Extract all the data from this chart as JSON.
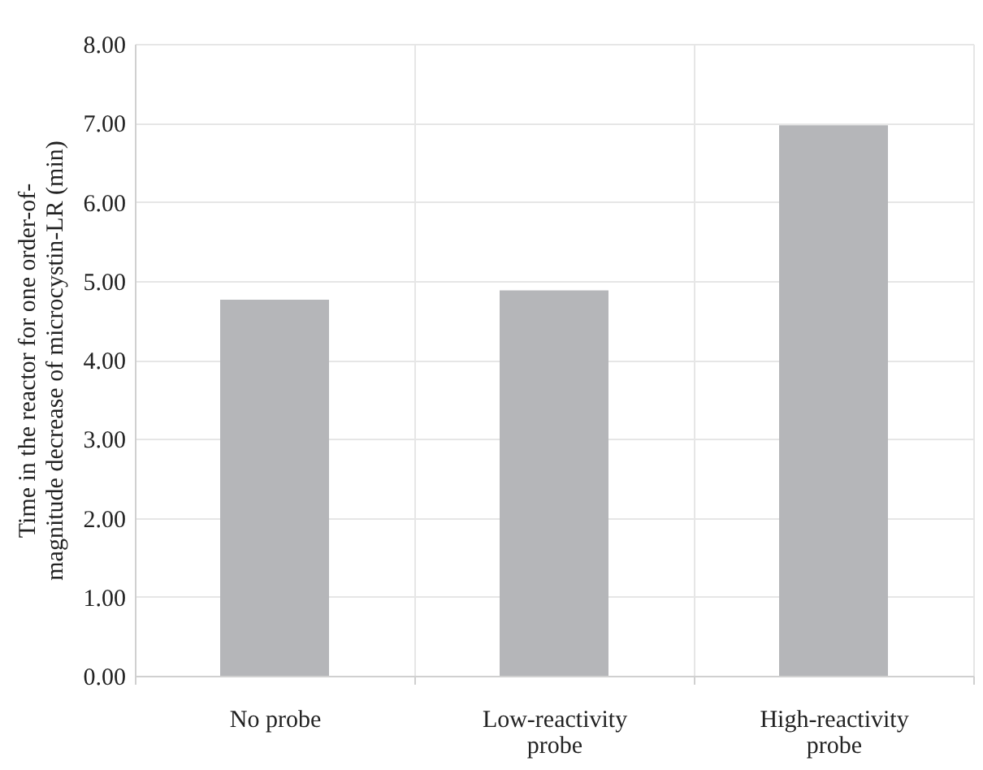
{
  "chart_data": {
    "type": "bar",
    "ylabel": "Time in the reactor for one order-of-magnitude decrease of microcystin-LR (min)",
    "categories": [
      "No probe",
      "Low-reactivity probe",
      "High-reactivity probe"
    ],
    "values": [
      4.76,
      4.88,
      6.97
    ],
    "color": "#b5b6b9",
    "ylim": [
      0,
      8
    ],
    "yticks": [
      {
        "value": 0,
        "label": "0.00"
      },
      {
        "value": 1,
        "label": "1.00"
      },
      {
        "value": 2,
        "label": "2.00"
      },
      {
        "value": 3,
        "label": "3.00"
      },
      {
        "value": 4,
        "label": "4.00"
      },
      {
        "value": 5,
        "label": "5.00"
      },
      {
        "value": 6,
        "label": "6.00"
      },
      {
        "value": 7,
        "label": "7.00"
      },
      {
        "value": 8,
        "label": "8.00"
      }
    ],
    "grid": true
  }
}
